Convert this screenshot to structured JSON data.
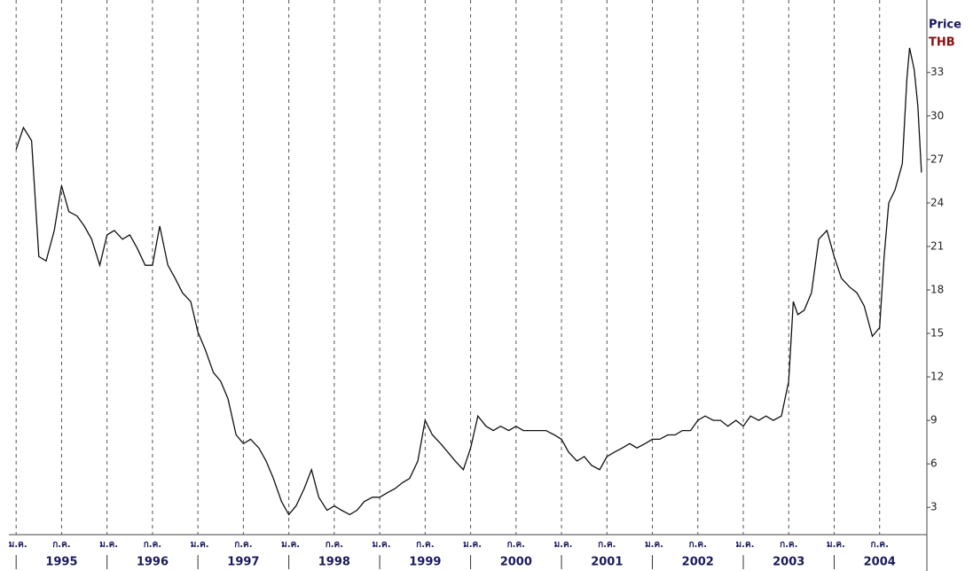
{
  "chart_data": {
    "type": "line",
    "title": "Price",
    "subtitle": "THB",
    "color": "#111111",
    "xlim": [
      1994.92,
      2005.02
    ],
    "ylim": [
      1.3,
      38
    ],
    "yticks": [
      3,
      6,
      9,
      12,
      15,
      18,
      21,
      24,
      27,
      30,
      33
    ],
    "xticks": [
      {
        "value": 1995,
        "label": "ม.ค."
      },
      {
        "value": 1995.5,
        "label": "ก.ค."
      },
      {
        "value": 1996,
        "label": "ม.ค."
      },
      {
        "value": 1996.5,
        "label": "ก.ค."
      },
      {
        "value": 1997,
        "label": "ม.ค."
      },
      {
        "value": 1997.5,
        "label": "ก.ค."
      },
      {
        "value": 1998,
        "label": "ม.ค."
      },
      {
        "value": 1998.5,
        "label": "ก.ค."
      },
      {
        "value": 1999,
        "label": "ม.ค."
      },
      {
        "value": 1999.5,
        "label": "ก.ค."
      },
      {
        "value": 2000,
        "label": "ม.ค."
      },
      {
        "value": 2000.5,
        "label": "ก.ค."
      },
      {
        "value": 2001,
        "label": "ม.ค."
      },
      {
        "value": 2001.5,
        "label": "ก.ค."
      },
      {
        "value": 2002,
        "label": "ม.ค."
      },
      {
        "value": 2002.5,
        "label": "ก.ค."
      },
      {
        "value": 2003,
        "label": "ม.ค."
      },
      {
        "value": 2003.5,
        "label": "ก.ค."
      },
      {
        "value": 2004,
        "label": "ม.ค."
      },
      {
        "value": 2004.5,
        "label": "ก.ค."
      }
    ],
    "year_ticks": [
      1995,
      1996,
      1997,
      1998,
      1999,
      2000,
      2001,
      2002,
      2003,
      2004
    ],
    "x": [
      1995.0,
      1995.08,
      1995.17,
      1995.25,
      1995.33,
      1995.42,
      1995.5,
      1995.58,
      1995.67,
      1995.75,
      1995.83,
      1995.92,
      1996.0,
      1996.08,
      1996.17,
      1996.25,
      1996.33,
      1996.42,
      1996.5,
      1996.58,
      1996.67,
      1996.75,
      1996.83,
      1996.92,
      1997.0,
      1997.08,
      1997.17,
      1997.25,
      1997.33,
      1997.42,
      1997.5,
      1997.58,
      1997.67,
      1997.75,
      1997.83,
      1997.92,
      1998.0,
      1998.08,
      1998.17,
      1998.25,
      1998.33,
      1998.42,
      1998.5,
      1998.58,
      1998.67,
      1998.75,
      1998.83,
      1998.92,
      1999.0,
      1999.08,
      1999.17,
      1999.25,
      1999.33,
      1999.42,
      1999.5,
      1999.58,
      1999.67,
      1999.75,
      1999.83,
      1999.92,
      2000.0,
      2000.08,
      2000.17,
      2000.25,
      2000.33,
      2000.42,
      2000.5,
      2000.58,
      2000.67,
      2000.75,
      2000.83,
      2000.92,
      2001.0,
      2001.08,
      2001.17,
      2001.25,
      2001.33,
      2001.42,
      2001.5,
      2001.58,
      2001.67,
      2001.75,
      2001.83,
      2001.92,
      2002.0,
      2002.08,
      2002.17,
      2002.25,
      2002.33,
      2002.42,
      2002.5,
      2002.58,
      2002.67,
      2002.75,
      2002.83,
      2002.92,
      2003.0,
      2003.08,
      2003.17,
      2003.25,
      2003.33,
      2003.42,
      2003.5,
      2003.55,
      2003.6,
      2003.67,
      2003.75,
      2003.83,
      2003.92,
      2004.0,
      2004.08,
      2004.17,
      2004.25,
      2004.33,
      2004.42,
      2004.5,
      2004.55,
      2004.6,
      2004.67,
      2004.75,
      2004.8,
      2004.83,
      2004.88,
      2004.92,
      2004.96
    ],
    "values": [
      27.7,
      29.2,
      28.3,
      20.3,
      20.0,
      22.1,
      25.2,
      23.4,
      23.1,
      22.4,
      21.5,
      19.7,
      21.8,
      22.1,
      21.5,
      21.8,
      20.9,
      19.7,
      19.7,
      22.4,
      19.7,
      18.8,
      17.8,
      17.2,
      15.1,
      13.9,
      12.3,
      11.7,
      10.5,
      8.0,
      7.4,
      7.7,
      7.1,
      6.2,
      5.0,
      3.4,
      2.5,
      3.1,
      4.3,
      5.6,
      3.7,
      2.8,
      3.1,
      2.8,
      2.5,
      2.8,
      3.4,
      3.7,
      3.7,
      4.0,
      4.3,
      4.7,
      5.0,
      6.2,
      9.0,
      8.0,
      7.4,
      6.8,
      6.2,
      5.6,
      7.1,
      9.3,
      8.6,
      8.3,
      8.6,
      8.3,
      8.6,
      8.3,
      8.3,
      8.3,
      8.3,
      8.0,
      7.7,
      6.8,
      6.2,
      6.5,
      5.9,
      5.6,
      6.5,
      6.8,
      7.1,
      7.4,
      7.1,
      7.4,
      7.7,
      7.7,
      8.0,
      8.0,
      8.3,
      8.3,
      9.0,
      9.3,
      9.0,
      9.0,
      8.6,
      9.0,
      8.6,
      9.3,
      9.0,
      9.3,
      9.0,
      9.3,
      11.7,
      17.2,
      16.3,
      16.6,
      17.8,
      21.5,
      22.1,
      20.3,
      18.8,
      18.2,
      17.8,
      16.9,
      14.8,
      15.4,
      20.3,
      24.0,
      24.9,
      26.7,
      32.6,
      34.7,
      33.2,
      30.7,
      26.1
    ]
  }
}
